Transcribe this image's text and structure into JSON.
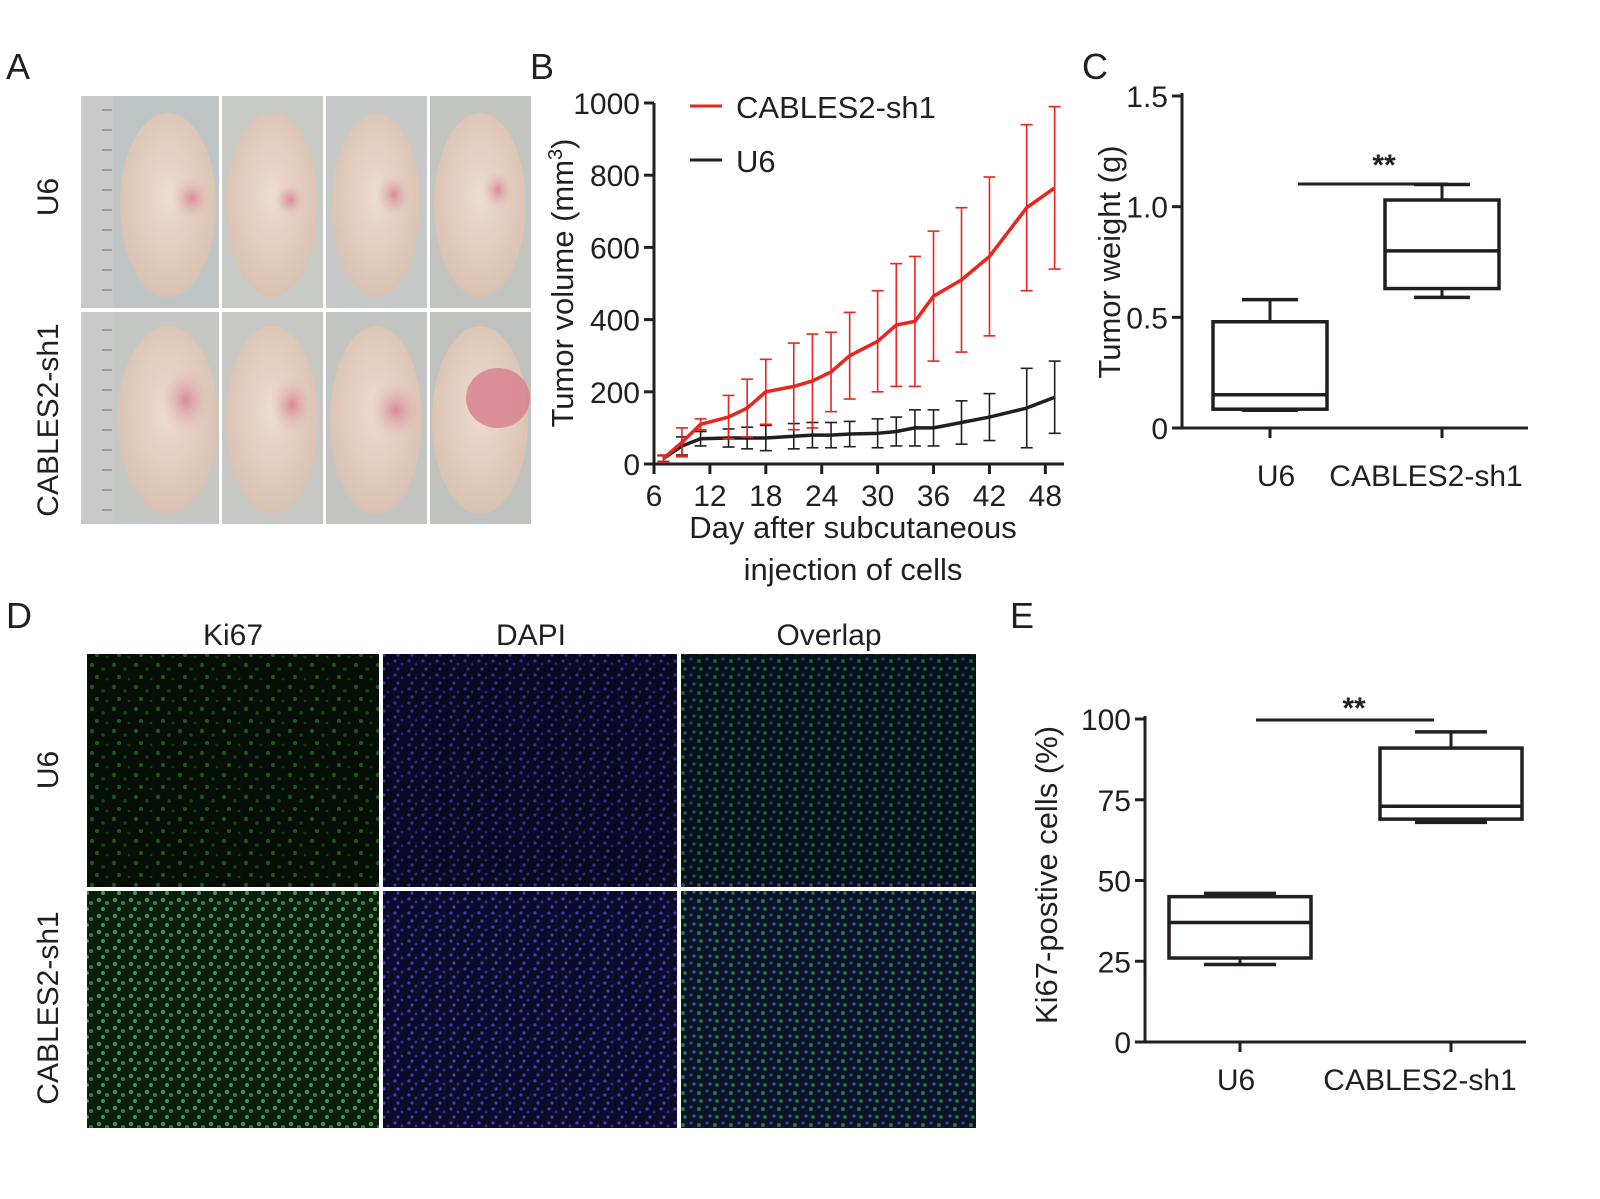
{
  "panels": {
    "A": {
      "label": "A",
      "row_labels": [
        "U6",
        "CABLES2-sh1"
      ]
    },
    "D": {
      "label": "D",
      "column_labels": [
        "Ki67",
        "DAPI",
        "Overlap"
      ],
      "row_labels": [
        "U6",
        "CABLES2-sh1"
      ]
    }
  },
  "colors": {
    "sh1": "#e8251f",
    "u6": "#231f20",
    "skin": "#e6cfc0",
    "ki67_green": "#2e8a3a",
    "dapi_blue": "#3a3ab8"
  },
  "chart_data": [
    {
      "panel": "B",
      "type": "line",
      "xlabel": "Day after subcutaneous injection of cells",
      "ylabel": "Tumor volume (mm³)",
      "ylabel_parts": {
        "main": "Tumor volume (mm",
        "sup": "3",
        "close": ")"
      },
      "xlim": [
        6,
        50
      ],
      "ylim": [
        0,
        1000
      ],
      "xticks": [
        6,
        12,
        18,
        24,
        30,
        36,
        42,
        48
      ],
      "yticks": [
        0,
        200,
        400,
        600,
        800,
        1000
      ],
      "legend_position": "top-left",
      "series": [
        {
          "name": "CABLES2-sh1",
          "color": "#e8251f",
          "x": [
            7,
            9,
            11,
            14,
            16,
            18,
            21,
            23,
            25,
            27,
            30,
            32,
            34,
            36,
            39,
            42,
            46,
            49
          ],
          "y": [
            15,
            60,
            110,
            130,
            155,
            200,
            215,
            230,
            255,
            300,
            340,
            385,
            395,
            465,
            510,
            575,
            710,
            765
          ],
          "err": [
            10,
            40,
            15,
            60,
            80,
            90,
            120,
            130,
            110,
            120,
            140,
            170,
            180,
            180,
            200,
            220,
            230,
            225
          ]
        },
        {
          "name": "U6",
          "color": "#231f20",
          "x": [
            7,
            9,
            11,
            14,
            16,
            18,
            21,
            23,
            25,
            27,
            30,
            32,
            34,
            36,
            39,
            42,
            46,
            49
          ],
          "y": [
            15,
            50,
            70,
            72,
            72,
            72,
            77,
            80,
            80,
            83,
            85,
            90,
            100,
            100,
            115,
            130,
            155,
            185
          ],
          "err": [
            8,
            25,
            20,
            25,
            30,
            35,
            35,
            35,
            35,
            35,
            40,
            40,
            50,
            50,
            60,
            65,
            110,
            100
          ]
        }
      ]
    },
    {
      "panel": "C",
      "type": "box",
      "ylabel": "Tumor weight (g)",
      "ylim": [
        0,
        1.5
      ],
      "yticks": [
        0,
        0.5,
        1.0,
        1.5
      ],
      "ytick_labels": [
        "0",
        "0.5",
        "1.0",
        "1.5"
      ],
      "categories": [
        "U6",
        "CABLES2-sh1"
      ],
      "boxes": [
        {
          "min": 0.08,
          "q1": 0.085,
          "median": 0.15,
          "q3": 0.48,
          "max": 0.58
        },
        {
          "min": 0.59,
          "q1": 0.63,
          "median": 0.8,
          "q3": 1.03,
          "max": 1.1
        }
      ],
      "significance": "**"
    },
    {
      "panel": "E",
      "type": "box",
      "ylabel": "Ki67-postive cells (%)",
      "ylim": [
        0,
        100
      ],
      "yticks": [
        0,
        25,
        50,
        75,
        100
      ],
      "ytick_labels": [
        "0",
        "25",
        "50",
        "75",
        "100"
      ],
      "categories": [
        "U6",
        "CABLES2-sh1"
      ],
      "boxes": [
        {
          "min": 24,
          "q1": 26,
          "median": 37,
          "q3": 45,
          "max": 46
        },
        {
          "min": 68,
          "q1": 69,
          "median": 73,
          "q3": 91,
          "max": 96
        }
      ],
      "significance": "**"
    }
  ]
}
